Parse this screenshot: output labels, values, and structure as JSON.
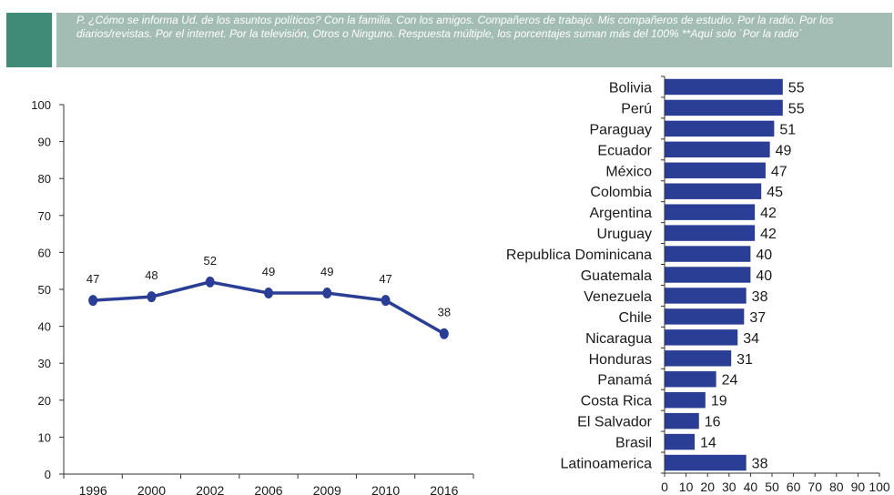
{
  "header": {
    "question": "P. ¿Cómo se informa Ud. de los asuntos políticos? Con la familia. Con los amigos. Compañeros de trabajo. Mis compañeros de estudio. Por la radio. Por los diarios/revistas. Por el internet. Por la televisión, Otros o Ninguno. Respuesta múltiple, los porcentajes suman más del 100% **Aquí solo `Por la radio´"
  },
  "colors": {
    "series": "#2b3e95",
    "header_band": "#a3bdb4",
    "header_square": "#3f8b78"
  },
  "chart_data": [
    {
      "type": "line",
      "x": [
        "1996",
        "2000",
        "2002",
        "2006",
        "2009",
        "2010",
        "2016"
      ],
      "values": [
        47,
        48,
        52,
        49,
        49,
        47,
        38
      ],
      "data_labels": [
        "47",
        "48",
        "52",
        "49",
        "49",
        "47",
        "38"
      ],
      "yticks": [
        "0",
        "10",
        "20",
        "30",
        "40",
        "50",
        "60",
        "70",
        "80",
        "90",
        "100"
      ],
      "ylim": [
        0,
        100
      ],
      "grid": false
    },
    {
      "type": "bar",
      "orientation": "horizontal",
      "categories": [
        "Bolivia",
        "Perú",
        "Paraguay",
        "Ecuador",
        "México",
        "Colombia",
        "Argentina",
        "Uruguay",
        "Republica Dominicana",
        "Guatemala",
        "Venezuela",
        "Chile",
        "Nicaragua",
        "Honduras",
        "Panamá",
        "Costa Rica",
        "El Salvador",
        "Brasil",
        "Latinoamerica"
      ],
      "values": [
        55,
        55,
        51,
        49,
        47,
        45,
        42,
        42,
        40,
        40,
        38,
        37,
        34,
        31,
        24,
        19,
        16,
        14,
        38
      ],
      "data_labels": [
        "55",
        "55",
        "51",
        "49",
        "47",
        "45",
        "42",
        "42",
        "40",
        "40",
        "38",
        "37",
        "34",
        "31",
        "24",
        "19",
        "16",
        "14",
        "38"
      ],
      "xticks": [
        "0",
        "10",
        "20",
        "30",
        "40",
        "50",
        "60",
        "70",
        "80",
        "90",
        "100"
      ],
      "xlim": [
        0,
        100
      ],
      "grid": false
    }
  ]
}
